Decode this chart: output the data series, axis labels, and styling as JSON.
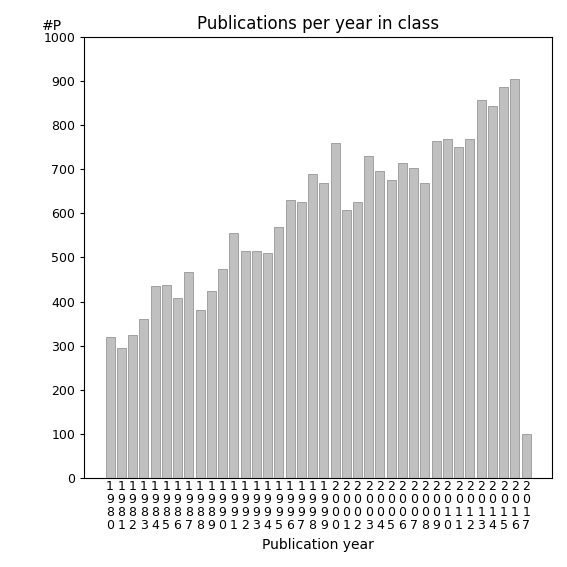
{
  "title": "Publications per year in class",
  "xlabel": "Publication year",
  "ylabel": "#P",
  "years": [
    "1980",
    "1981",
    "1982",
    "1983",
    "1984",
    "1985",
    "1986",
    "1987",
    "1988",
    "1989",
    "1990",
    "1991",
    "1992",
    "1993",
    "1994",
    "1995",
    "1996",
    "1997",
    "1998",
    "1999",
    "2000",
    "2001",
    "2002",
    "2003",
    "2004",
    "2005",
    "2006",
    "2007",
    "2008",
    "2009",
    "2010",
    "2011",
    "2012",
    "2013",
    "2014",
    "2015",
    "2016",
    "2017"
  ],
  "values": [
    320,
    295,
    325,
    360,
    435,
    437,
    407,
    467,
    380,
    425,
    475,
    555,
    515,
    515,
    510,
    570,
    630,
    625,
    690,
    670,
    760,
    607,
    625,
    730,
    697,
    675,
    715,
    703,
    670,
    765,
    770,
    752,
    768,
    858,
    843,
    887,
    905,
    100
  ],
  "bar_color": "#c0c0c0",
  "bar_edge_color": "#888888",
  "ylim": [
    0,
    1000
  ],
  "yticks": [
    0,
    100,
    200,
    300,
    400,
    500,
    600,
    700,
    800,
    900,
    1000
  ],
  "background_color": "#ffffff",
  "title_fontsize": 12,
  "axis_label_fontsize": 10,
  "tick_fontsize": 9
}
